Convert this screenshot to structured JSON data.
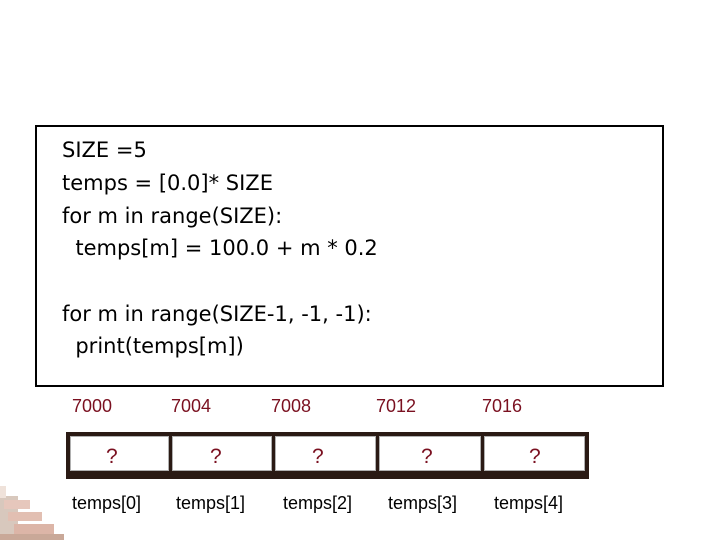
{
  "code": {
    "line1": "SIZE =5",
    "line2": "temps = [0.0]* SIZE",
    "line3": "for m in range(SIZE):",
    "line4": "  temps[m] = 100.0 + m * 0.2",
    "line5": "for m in range(SIZE-1, -1, -1):",
    "line6": "  print(temps[m])"
  },
  "addresses": [
    "7000",
    "7004",
    "7008",
    "7012",
    "7016"
  ],
  "cells": [
    "?",
    "?",
    "?",
    "?",
    "?"
  ],
  "labels": [
    "temps[0]",
    "temps[1]",
    "temps[2]",
    "temps[3]",
    "temps[4]"
  ],
  "colors": {
    "address": "#7a1020",
    "cell_value": "#7a1020",
    "array_frame": "#2a1a14"
  }
}
